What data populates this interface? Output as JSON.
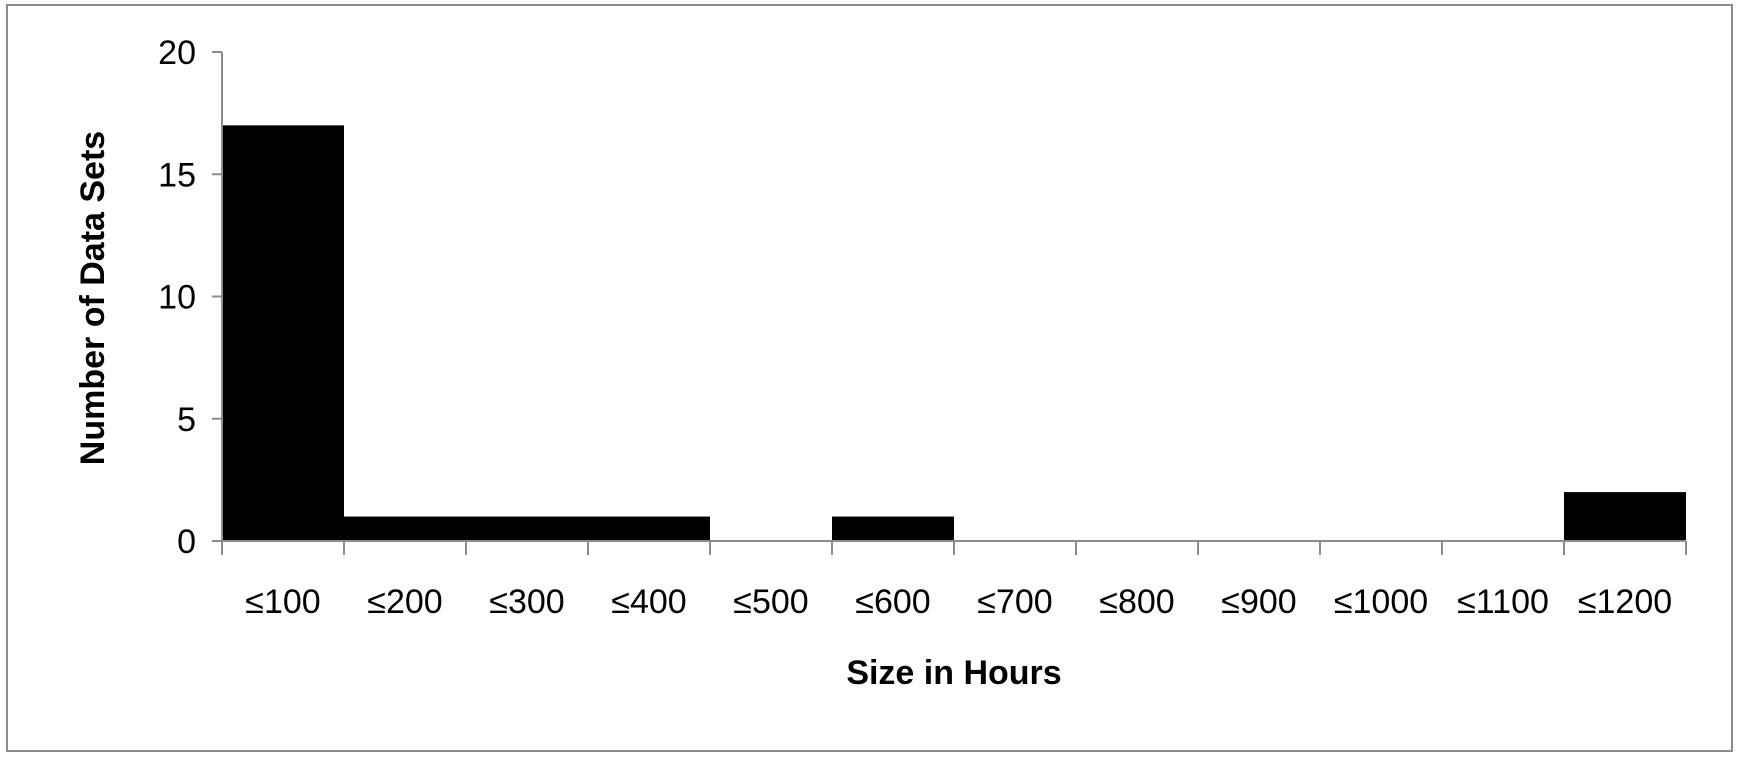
{
  "chart_data": {
    "type": "bar",
    "title": "",
    "xlabel": "Size in Hours",
    "ylabel": "Number of Data Sets",
    "categories": [
      "≤100",
      "≤200",
      "≤300",
      "≤400",
      "≤500",
      "≤600",
      "≤700",
      "≤800",
      "≤900",
      "≤1000",
      "≤1100",
      "≤1200"
    ],
    "values": [
      17,
      1,
      1,
      1,
      0,
      1,
      0,
      0,
      0,
      0,
      0,
      2
    ],
    "ylim": [
      0,
      20
    ],
    "yticks": [
      0,
      5,
      10,
      15,
      20
    ],
    "grid": false,
    "legend": "none",
    "bar_color": "#000000",
    "axis_color": "#8c8c8c"
  }
}
